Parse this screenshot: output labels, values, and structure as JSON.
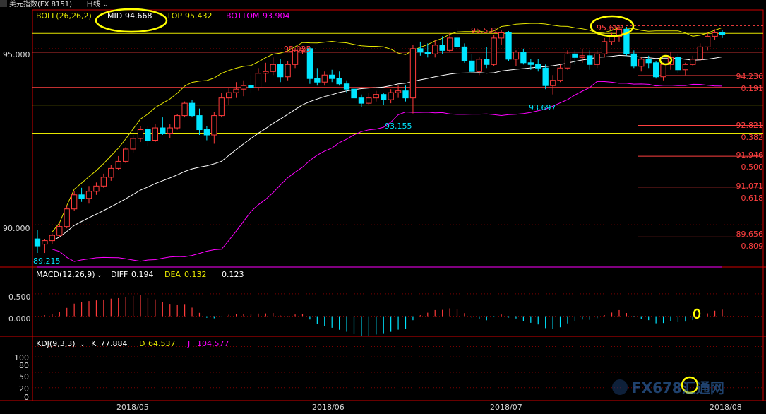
{
  "window": {
    "title": "美元指数(FX 8151)",
    "period": "日线",
    "period_chevron": "⌄"
  },
  "colors": {
    "background": "#000000",
    "up": "#ff3b3b",
    "down": "#00e5ff",
    "mid": "#ffffff",
    "top": "#e6e600",
    "bottom": "#ff00ff",
    "axis": "#d00000",
    "fib": "#ff4040",
    "grid": "#7a0000"
  },
  "boll_header": {
    "name": "BOLL(26,26,2)",
    "mid_label": "MID",
    "mid_value": "94.668",
    "top_label": "TOP",
    "top_value": "95.432",
    "bottom_label": "BOTTOM",
    "bottom_value": "93.904"
  },
  "macd_header": {
    "name": "MACD(12,26,9)",
    "diff_label": "DIFF",
    "diff_value": "0.194",
    "dea_label": "DEA",
    "dea_value": "0.132",
    "macd_value": "0.123"
  },
  "kdj_header": {
    "name": "KDJ(9,3,3)",
    "k_label": "K",
    "k_value": "77.884",
    "d_label": "D",
    "d_value": "64.537",
    "j_label": "J",
    "j_value": "104.577"
  },
  "price_axis": {
    "labels": [
      "95.000",
      "90.000"
    ],
    "values": [
      95.0,
      90.0
    ]
  },
  "macd_axis": {
    "labels": [
      "0.500",
      "0.000"
    ],
    "values": [
      0.5,
      0.0
    ]
  },
  "kdj_axis": {
    "labels": [
      "100",
      "80",
      "50",
      "20",
      "0"
    ],
    "values": [
      100,
      80,
      50,
      20,
      0
    ]
  },
  "x_axis": {
    "labels": [
      "2018/05",
      "2018/06",
      "2018/07",
      "2018/08"
    ]
  },
  "annotations": {
    "high_1": "95.025",
    "high_2": "95.531",
    "high_3": "95.652",
    "low_1": "93.155",
    "low_2": "93.697",
    "start_low": "89.215"
  },
  "fib_levels": [
    {
      "price": "94.236",
      "ratio": "0.191"
    },
    {
      "price": "92.821",
      "ratio": "0.382"
    },
    {
      "price": "91.946",
      "ratio": "0.500"
    },
    {
      "price": "91.071",
      "ratio": "0.618"
    },
    {
      "price": "89.656",
      "ratio": "0.809"
    }
  ],
  "watermark": "FX678汇通网",
  "chart_data": [
    {
      "type": "candlestick",
      "title": "美元指数(FX 8151) 日线 BOLL(26,26,2)",
      "ylim": [
        88.8,
        96.1
      ],
      "x_ticks": [
        "2018/05",
        "2018/06",
        "2018/07",
        "2018/08"
      ],
      "boll": {
        "mid": 94.668,
        "top": 95.432,
        "bottom": 93.904
      },
      "series": [
        {
          "name": "MID",
          "values": []
        },
        {
          "name": "TOP",
          "values": []
        },
        {
          "name": "BOTTOM",
          "values": []
        }
      ],
      "ohlc": [
        [
          89.6,
          89.85,
          89.2,
          89.4
        ],
        [
          89.45,
          89.6,
          89.2,
          89.55
        ],
        [
          89.55,
          89.75,
          89.45,
          89.7
        ],
        [
          89.7,
          90.05,
          89.65,
          89.95
        ],
        [
          89.95,
          90.55,
          89.9,
          90.45
        ],
        [
          90.45,
          90.95,
          90.4,
          90.85
        ],
        [
          90.85,
          91.05,
          90.65,
          90.75
        ],
        [
          90.75,
          91.1,
          90.6,
          90.95
        ],
        [
          90.95,
          91.2,
          90.85,
          91.1
        ],
        [
          91.1,
          91.45,
          91.05,
          91.35
        ],
        [
          91.35,
          91.7,
          91.25,
          91.6
        ],
        [
          91.6,
          91.95,
          91.55,
          91.8
        ],
        [
          91.8,
          92.2,
          91.75,
          92.15
        ],
        [
          92.15,
          92.55,
          92.05,
          92.45
        ],
        [
          92.45,
          92.8,
          92.35,
          92.7
        ],
        [
          92.7,
          92.8,
          92.25,
          92.4
        ],
        [
          92.4,
          92.85,
          92.35,
          92.75
        ],
        [
          92.75,
          93.05,
          92.55,
          92.6
        ],
        [
          92.6,
          92.85,
          92.45,
          92.75
        ],
        [
          92.75,
          93.15,
          92.7,
          93.1
        ],
        [
          93.1,
          93.5,
          93.05,
          93.45
        ],
        [
          93.45,
          93.55,
          93.05,
          93.1
        ],
        [
          93.1,
          93.3,
          92.55,
          92.7
        ],
        [
          92.7,
          92.8,
          92.4,
          92.55
        ],
        [
          92.55,
          93.2,
          92.3,
          93.1
        ],
        [
          93.1,
          93.75,
          93.05,
          93.6
        ],
        [
          93.6,
          93.9,
          93.4,
          93.75
        ],
        [
          93.75,
          94.05,
          93.6,
          93.85
        ],
        [
          93.85,
          94.1,
          93.65,
          93.95
        ],
        [
          93.95,
          94.25,
          93.75,
          93.9
        ],
        [
          93.9,
          94.45,
          93.8,
          94.3
        ],
        [
          94.3,
          94.6,
          94.05,
          94.35
        ],
        [
          94.35,
          94.75,
          94.25,
          94.55
        ],
        [
          94.55,
          94.7,
          94.05,
          94.2
        ],
        [
          94.2,
          94.65,
          94.1,
          94.55
        ],
        [
          94.55,
          95.03,
          94.45,
          94.95
        ],
        [
          94.95,
          95.05,
          94.85,
          95.0
        ],
        [
          95.0,
          95.05,
          94.0,
          94.15
        ],
        [
          94.15,
          94.45,
          93.95,
          94.05
        ],
        [
          94.05,
          94.35,
          93.95,
          94.25
        ],
        [
          94.25,
          94.4,
          94.05,
          94.15
        ],
        [
          94.15,
          94.35,
          93.95,
          94.0
        ],
        [
          94.0,
          94.1,
          93.75,
          93.85
        ],
        [
          93.85,
          93.95,
          93.55,
          93.6
        ],
        [
          93.6,
          93.7,
          93.35,
          93.45
        ],
        [
          93.45,
          93.75,
          93.4,
          93.6
        ],
        [
          93.6,
          93.8,
          93.5,
          93.7
        ],
        [
          93.7,
          93.75,
          93.4,
          93.55
        ],
        [
          93.55,
          93.85,
          93.45,
          93.75
        ],
        [
          93.75,
          93.95,
          93.6,
          93.8
        ],
        [
          93.8,
          93.95,
          93.5,
          93.6
        ],
        [
          93.6,
          95.1,
          93.16,
          95.0
        ],
        [
          95.0,
          95.2,
          94.8,
          94.9
        ],
        [
          94.9,
          95.15,
          94.75,
          94.85
        ],
        [
          94.85,
          95.25,
          94.75,
          95.1
        ],
        [
          95.1,
          95.35,
          94.85,
          94.95
        ],
        [
          94.95,
          95.45,
          94.9,
          95.3
        ],
        [
          95.3,
          95.6,
          95.0,
          95.05
        ],
        [
          95.05,
          95.15,
          94.6,
          94.65
        ],
        [
          94.65,
          94.85,
          94.3,
          94.35
        ],
        [
          94.35,
          94.75,
          94.25,
          94.7
        ],
        [
          94.7,
          95.05,
          94.45,
          94.55
        ],
        [
          94.55,
          95.4,
          94.5,
          95.3
        ],
        [
          95.3,
          95.53,
          95.1,
          95.45
        ],
        [
          95.45,
          95.5,
          94.65,
          94.7
        ],
        [
          94.7,
          94.95,
          94.5,
          94.9
        ],
        [
          94.9,
          95.0,
          94.55,
          94.6
        ],
        [
          94.6,
          94.7,
          94.4,
          94.55
        ],
        [
          94.55,
          94.7,
          94.35,
          94.45
        ],
        [
          94.45,
          94.55,
          93.85,
          93.95
        ],
        [
          93.95,
          94.25,
          93.7,
          94.1
        ],
        [
          94.1,
          94.55,
          94.05,
          94.45
        ],
        [
          94.45,
          94.95,
          94.4,
          94.85
        ],
        [
          94.85,
          94.95,
          94.55,
          94.75
        ],
        [
          94.75,
          95.0,
          94.6,
          94.8
        ],
        [
          94.8,
          94.95,
          94.4,
          94.55
        ],
        [
          94.55,
          94.95,
          94.45,
          94.85
        ],
        [
          94.85,
          95.3,
          94.75,
          95.2
        ],
        [
          95.2,
          95.45,
          95.1,
          95.35
        ],
        [
          95.35,
          95.65,
          95.2,
          95.55
        ],
        [
          95.55,
          95.62,
          94.8,
          94.85
        ],
        [
          94.85,
          94.95,
          94.45,
          94.5
        ],
        [
          94.5,
          94.75,
          94.35,
          94.7
        ],
        [
          94.7,
          94.8,
          94.45,
          94.6
        ],
        [
          94.6,
          94.65,
          94.15,
          94.2
        ],
        [
          94.2,
          94.6,
          94.1,
          94.55
        ],
        [
          94.55,
          94.9,
          94.4,
          94.75
        ],
        [
          94.75,
          94.85,
          94.3,
          94.4
        ],
        [
          94.4,
          94.6,
          94.25,
          94.55
        ],
        [
          94.55,
          94.8,
          94.5,
          94.7
        ],
        [
          94.7,
          95.15,
          94.65,
          95.05
        ],
        [
          95.05,
          95.45,
          94.95,
          95.35
        ],
        [
          95.35,
          95.55,
          95.25,
          95.45
        ],
        [
          95.45,
          95.52,
          95.3,
          95.4
        ]
      ]
    },
    {
      "type": "bar",
      "title": "MACD(12,26,9)",
      "series_names": [
        "DIFF",
        "DEA",
        "MACD"
      ],
      "latest": {
        "DIFF": 0.194,
        "DEA": 0.132,
        "MACD": 0.123
      },
      "ylim": [
        -0.45,
        1.1
      ],
      "y_ticks": [
        0.0,
        0.5
      ]
    },
    {
      "type": "line",
      "title": "KDJ(9,3,3)",
      "series_names": [
        "K",
        "D",
        "J"
      ],
      "latest": {
        "K": 77.884,
        "D": 64.537,
        "J": 104.577
      },
      "ylim": [
        -5,
        120
      ],
      "y_ticks": [
        0,
        20,
        50,
        80,
        100
      ]
    }
  ]
}
